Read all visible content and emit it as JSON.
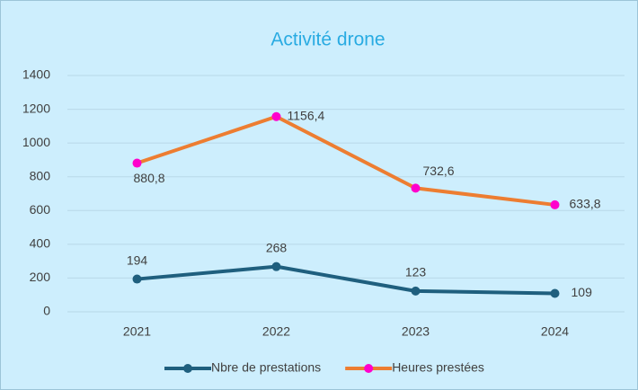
{
  "chart_data": {
    "type": "line",
    "title": "Activité drone",
    "categories": [
      "2021",
      "2022",
      "2023",
      "2024"
    ],
    "series": [
      {
        "name": "Nbre de prestations",
        "color": "#1f5f7e",
        "marker_color": "#1f5f7e",
        "values": [
          194,
          268,
          123,
          109
        ]
      },
      {
        "name": "Heures prestées",
        "color": "#ed7d31",
        "marker_color": "#ff00cc",
        "values": [
          880.8,
          1156.4,
          732.6,
          633.8
        ],
        "value_labels": [
          "880,8",
          "1156,4",
          "732,6",
          "633,8"
        ]
      }
    ],
    "ylim": [
      0,
      1400
    ],
    "yticks": [
      0,
      200,
      400,
      600,
      800,
      1000,
      1200,
      1400
    ],
    "grid": true,
    "legend": "bottom"
  }
}
